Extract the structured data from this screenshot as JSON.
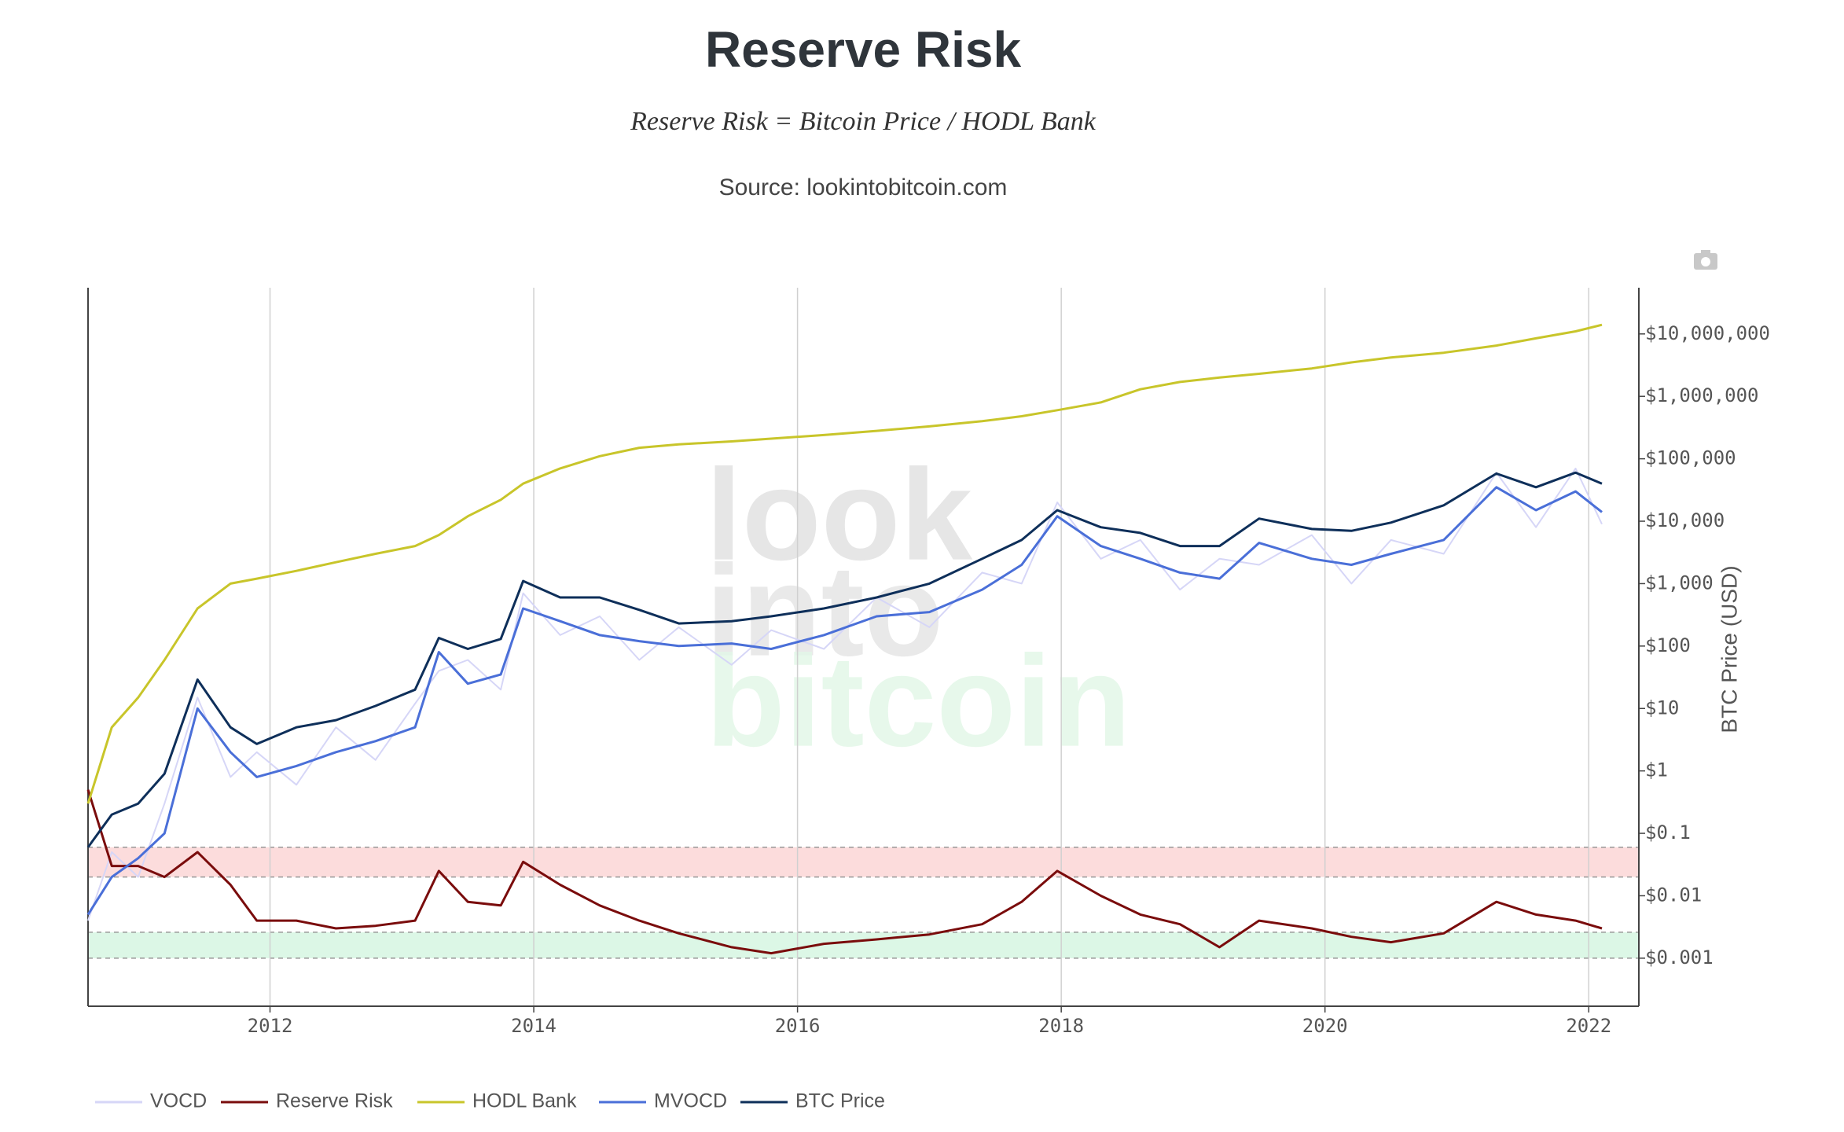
{
  "chart_data": {
    "type": "line",
    "title": "Reserve Risk",
    "subtitle": "Reserve Risk = Bitcoin Price / HODL Bank",
    "source": "Source: lookintobitcoin.com",
    "watermark": [
      "look",
      "into",
      "bitcoin"
    ],
    "y_axis_label": "BTC Price (USD)",
    "log_y": true,
    "grid": "x",
    "legend": "bottom",
    "x": [
      2010.62,
      2010.8,
      2011.0,
      2011.2,
      2011.45,
      2011.7,
      2011.9,
      2012.2,
      2012.5,
      2012.8,
      2013.1,
      2013.28,
      2013.5,
      2013.75,
      2013.92,
      2014.2,
      2014.5,
      2014.8,
      2015.1,
      2015.5,
      2015.8,
      2016.2,
      2016.6,
      2017.0,
      2017.4,
      2017.7,
      2017.97,
      2018.3,
      2018.6,
      2018.9,
      2019.2,
      2019.5,
      2019.9,
      2020.2,
      2020.5,
      2020.9,
      2021.3,
      2021.6,
      2021.9,
      2022.1
    ],
    "xlim": [
      2010.62,
      2022.38
    ],
    "xticks": [
      2012,
      2014,
      2016,
      2018,
      2020,
      2022
    ],
    "ylim": [
      0.00017,
      55000000
    ],
    "yticks": [
      {
        "value": 0.001,
        "label": "$0.001"
      },
      {
        "value": 0.01,
        "label": "$0.01"
      },
      {
        "value": 0.1,
        "label": "$0.1"
      },
      {
        "value": 1,
        "label": "$1"
      },
      {
        "value": 10,
        "label": "$10"
      },
      {
        "value": 100,
        "label": "$100"
      },
      {
        "value": 1000,
        "label": "$1,000"
      },
      {
        "value": 10000,
        "label": "$10,000"
      },
      {
        "value": 100000,
        "label": "$100,000"
      },
      {
        "value": 1000000,
        "label": "$1,000,000"
      },
      {
        "value": 10000000,
        "label": "$10,000,000"
      }
    ],
    "bands": [
      {
        "range": [
          0.02,
          0.06
        ],
        "color": "#fcdcdc"
      },
      {
        "range": [
          0.001,
          0.0026
        ],
        "color": "#dcf7e6"
      }
    ],
    "series": [
      {
        "name": "VOCD",
        "color": "#d6d6f7",
        "values": [
          0.004,
          0.05,
          0.02,
          0.3,
          15,
          0.8,
          2,
          0.6,
          5,
          1.5,
          12,
          40,
          60,
          20,
          700,
          150,
          300,
          60,
          200,
          50,
          180,
          90,
          600,
          200,
          1500,
          1000,
          20000,
          2500,
          5000,
          800,
          2500,
          2000,
          6000,
          1000,
          5000,
          3000,
          60000,
          8000,
          70000,
          9000
        ]
      },
      {
        "name": "Reserve Risk",
        "color": "#7a0c0c",
        "values": [
          0.5,
          0.03,
          0.03,
          0.02,
          0.05,
          0.015,
          0.004,
          0.004,
          0.003,
          0.0033,
          0.004,
          0.025,
          0.008,
          0.007,
          0.035,
          0.015,
          0.007,
          0.004,
          0.0025,
          0.0015,
          0.0012,
          0.0017,
          0.002,
          0.0024,
          0.0035,
          0.008,
          0.025,
          0.01,
          0.005,
          0.0035,
          0.0015,
          0.004,
          0.003,
          0.0022,
          0.0018,
          0.0025,
          0.008,
          0.005,
          0.004,
          0.003
        ]
      },
      {
        "name": "HODL Bank",
        "color": "#c8c52a",
        "values": [
          0.3,
          5,
          15,
          60,
          400,
          1000,
          1200,
          1600,
          2200,
          3000,
          4000,
          6000,
          12000,
          22000,
          40000,
          70000,
          110000,
          150000,
          170000,
          190000,
          210000,
          240000,
          280000,
          330000,
          400000,
          480000,
          600000,
          800000,
          1300000,
          1700000,
          2000000,
          2300000,
          2800000,
          3500000,
          4200000,
          5000000,
          6500000,
          8500000,
          11000000,
          14000000
        ]
      },
      {
        "name": "MVOCD",
        "color": "#4a6fd8",
        "values": [
          0.005,
          0.02,
          0.04,
          0.1,
          10,
          2,
          0.8,
          1.2,
          2,
          3,
          5,
          80,
          25,
          35,
          400,
          250,
          150,
          120,
          100,
          110,
          90,
          150,
          300,
          350,
          800,
          2000,
          12000,
          4000,
          2500,
          1500,
          1200,
          4500,
          2500,
          2000,
          3000,
          5000,
          35000,
          15000,
          30000,
          14000
        ]
      },
      {
        "name": "BTC Price",
        "color": "#0e2f5a",
        "values": [
          0.06,
          0.2,
          0.3,
          0.9,
          29,
          5,
          2.7,
          5,
          6.5,
          11,
          20,
          135,
          90,
          130,
          1100,
          600,
          600,
          380,
          230,
          250,
          300,
          400,
          600,
          1000,
          2500,
          5000,
          15000,
          8000,
          6500,
          4000,
          4000,
          11000,
          7500,
          7000,
          9500,
          18000,
          58000,
          35000,
          60000,
          40000
        ]
      }
    ]
  }
}
